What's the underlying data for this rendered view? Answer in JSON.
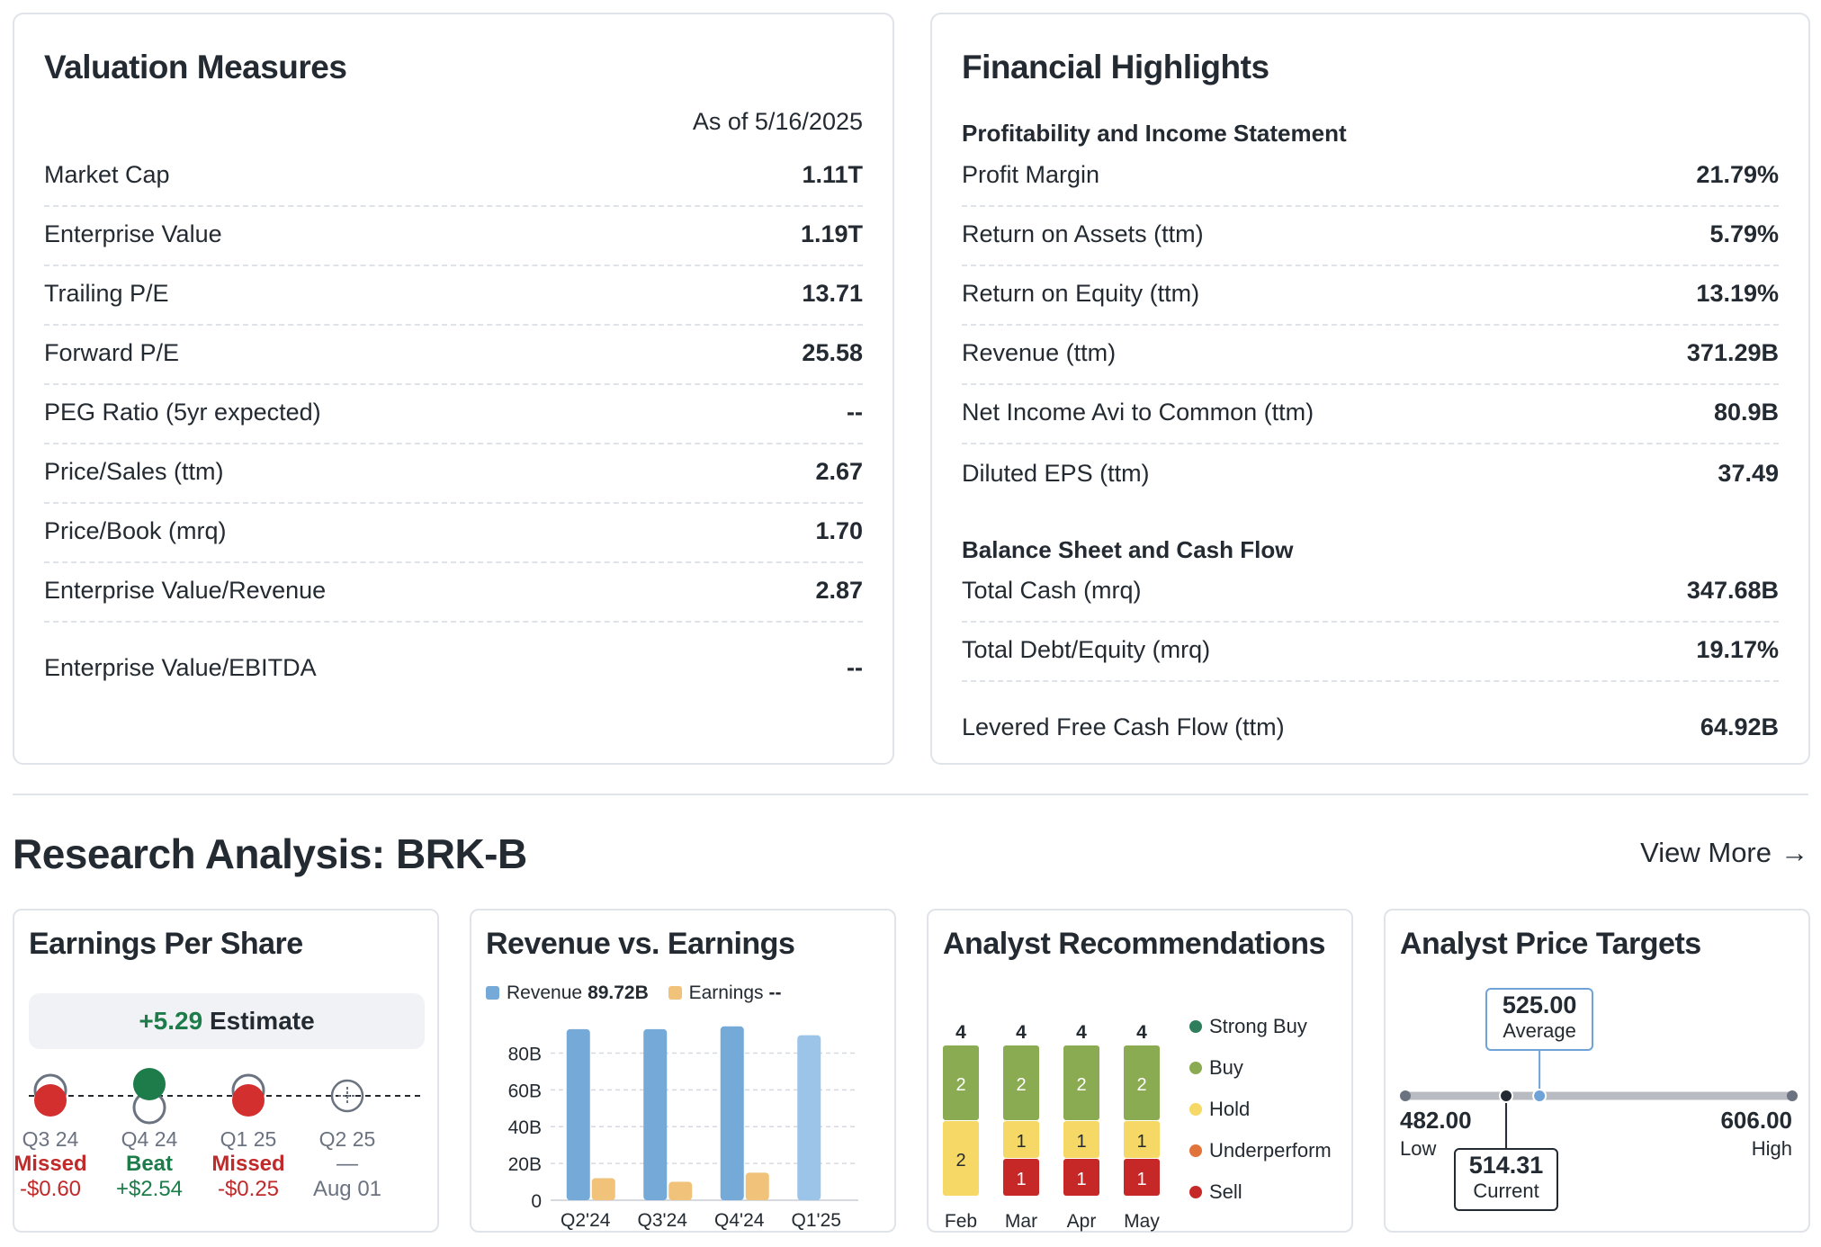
{
  "valuation": {
    "title": "Valuation Measures",
    "as_of": "As of 5/16/2025",
    "rows": [
      {
        "label": "Market Cap",
        "value": "1.11T"
      },
      {
        "label": "Enterprise Value",
        "value": "1.19T"
      },
      {
        "label": "Trailing P/E",
        "value": "13.71"
      },
      {
        "label": "Forward P/E",
        "value": "25.58"
      },
      {
        "label": "PEG Ratio (5yr expected)",
        "value": "--"
      },
      {
        "label": "Price/Sales (ttm)",
        "value": "2.67"
      },
      {
        "label": "Price/Book (mrq)",
        "value": "1.70"
      },
      {
        "label": "Enterprise Value/Revenue",
        "value": "2.87"
      },
      {
        "label": "Enterprise Value/EBITDA",
        "value": "--"
      }
    ]
  },
  "financial": {
    "title": "Financial Highlights",
    "section1": "Profitability and Income Statement",
    "rows1": [
      {
        "label": "Profit Margin",
        "value": "21.79%"
      },
      {
        "label": "Return on Assets (ttm)",
        "value": "5.79%"
      },
      {
        "label": "Return on Equity (ttm)",
        "value": "13.19%"
      },
      {
        "label": "Revenue (ttm)",
        "value": "371.29B"
      },
      {
        "label": "Net Income Avi to Common (ttm)",
        "value": "80.9B"
      },
      {
        "label": "Diluted EPS (ttm)",
        "value": "37.49"
      }
    ],
    "section2": "Balance Sheet and Cash Flow",
    "rows2": [
      {
        "label": "Total Cash (mrq)",
        "value": "347.68B"
      },
      {
        "label": "Total Debt/Equity (mrq)",
        "value": "19.17%"
      },
      {
        "label": "Levered Free Cash Flow (ttm)",
        "value": "64.92B"
      }
    ]
  },
  "research": {
    "title": "Research Analysis: BRK-B",
    "view_more": "View More",
    "view_more_arrow": "→"
  },
  "eps": {
    "title": "Earnings Per Share",
    "estimate_value": "+5.29",
    "estimate_label": "Estimate",
    "quarters": [
      {
        "quarter": "Q3 24",
        "result": "Missed",
        "amount": "-$0.60",
        "status": "missed"
      },
      {
        "quarter": "Q4 24",
        "result": "Beat",
        "amount": "+$2.54",
        "status": "beat"
      },
      {
        "quarter": "Q1 25",
        "result": "Missed",
        "amount": "-$0.25",
        "status": "missed"
      },
      {
        "quarter": "Q2 25",
        "result": "—",
        "amount": "Aug 01",
        "status": "upcoming"
      }
    ]
  },
  "revenue_earnings": {
    "title": "Revenue vs. Earnings",
    "legend_revenue": "Revenue",
    "legend_revenue_value": "89.72B",
    "legend_earnings": "Earnings",
    "legend_earnings_value": "--"
  },
  "analyst_recs": {
    "title": "Analyst Recommendations",
    "legend": [
      "Strong Buy",
      "Buy",
      "Hold",
      "Underperform",
      "Sell"
    ]
  },
  "price_targets": {
    "title": "Analyst Price Targets",
    "average_value": "525.00",
    "average_label": "Average",
    "low_value": "482.00",
    "low_label": "Low",
    "high_value": "606.00",
    "high_label": "High",
    "current_value": "514.31",
    "current_label": "Current",
    "low": 482.0,
    "high": 606.0,
    "average": 525.0,
    "current": 514.31
  },
  "colors": {
    "revenue": "#74a9d8",
    "revenue_light": "#9cc4e8",
    "earnings": "#f0c27a",
    "strong_buy": "#2e7d5b",
    "buy": "#8aab52",
    "hold": "#f5d865",
    "underperform": "#e0743a",
    "sell": "#c62828",
    "track": "#b8bcc2"
  },
  "chart_data": [
    {
      "type": "bar",
      "title": "Revenue vs. Earnings",
      "categories": [
        "Q2'24",
        "Q3'24",
        "Q4'24",
        "Q1'25"
      ],
      "series": [
        {
          "name": "Revenue",
          "values": [
            93,
            93,
            94.5,
            89.72
          ]
        },
        {
          "name": "Earnings",
          "values": [
            12,
            10,
            15,
            0
          ]
        }
      ],
      "ylim": [
        0,
        90
      ],
      "yticks": [
        0,
        20,
        40,
        60,
        80
      ],
      "ytick_labels": [
        "0",
        "20B",
        "40B",
        "60B",
        "80B"
      ],
      "xlabel": "",
      "ylabel": ""
    },
    {
      "type": "bar",
      "stacked": true,
      "title": "Analyst Recommendations",
      "categories": [
        "Feb",
        "Mar",
        "Apr",
        "May"
      ],
      "totals": [
        4,
        4,
        4,
        4
      ],
      "series": [
        {
          "name": "Strong Buy",
          "values": [
            0,
            0,
            0,
            0
          ]
        },
        {
          "name": "Buy",
          "values": [
            2,
            2,
            2,
            2
          ]
        },
        {
          "name": "Hold",
          "values": [
            2,
            1,
            1,
            1
          ]
        },
        {
          "name": "Underperform",
          "values": [
            0,
            0,
            0,
            0
          ]
        },
        {
          "name": "Sell",
          "values": [
            0,
            1,
            1,
            1
          ]
        }
      ]
    }
  ]
}
